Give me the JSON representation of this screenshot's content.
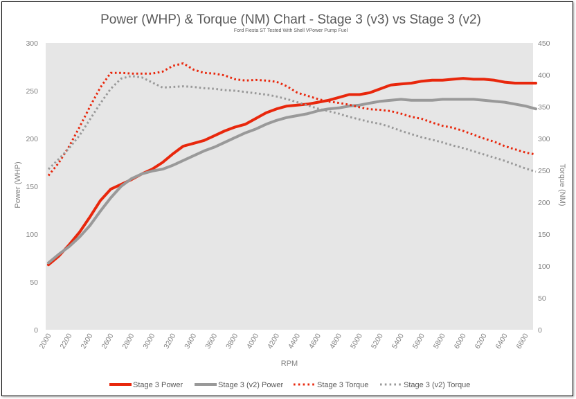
{
  "chart_data": {
    "type": "line",
    "title": "Power (WHP) & Torque (NM) Chart - Stage 3 (v3) vs Stage 3 (v2)",
    "subtitle": "Ford Fiesta ST Tested With Shell VPower Pump Fuel",
    "xlabel": "RPM",
    "ylabel": "Power (WHP)",
    "y2label": "Torque (NM)",
    "ylim": [
      0,
      300
    ],
    "y2lim": [
      0,
      450
    ],
    "yticks": [
      "0",
      "50",
      "100",
      "150",
      "200",
      "250",
      "300"
    ],
    "y2ticks": [
      "0",
      "50",
      "100",
      "150",
      "200",
      "250",
      "300",
      "350",
      "400",
      "450"
    ],
    "xlim": [
      2000,
      6700
    ],
    "xticks": [
      "2000",
      "2200",
      "2400",
      "2600",
      "2800",
      "3000",
      "3200",
      "3400",
      "3600",
      "3800",
      "4000",
      "4200",
      "4400",
      "4600",
      "4800",
      "5000",
      "5200",
      "5400",
      "5600",
      "5800",
      "6000",
      "6200",
      "6400",
      "6600"
    ],
    "plot_background": "#e6e6e6",
    "grid": false,
    "legend_position": "bottom",
    "series": [
      {
        "name": "Stage 3 Power",
        "axis": "left",
        "style": "solid",
        "color": "#e8270c",
        "x": [
          2000,
          2100,
          2200,
          2300,
          2400,
          2500,
          2600,
          2700,
          2800,
          2900,
          3000,
          3100,
          3200,
          3300,
          3400,
          3500,
          3600,
          3700,
          3800,
          3900,
          4000,
          4100,
          4200,
          4300,
          4400,
          4500,
          4600,
          4700,
          4800,
          4900,
          5000,
          5100,
          5200,
          5300,
          5400,
          5500,
          5600,
          5700,
          5800,
          5900,
          6000,
          6100,
          6200,
          6300,
          6400,
          6500,
          6600,
          6700
        ],
        "values": [
          68,
          77,
          89,
          102,
          118,
          135,
          147,
          152,
          157,
          163,
          168,
          175,
          184,
          192,
          195,
          198,
          203,
          208,
          212,
          215,
          221,
          227,
          231,
          234,
          235,
          236,
          238,
          240,
          243,
          246,
          246,
          248,
          252,
          256,
          257,
          258,
          260,
          261,
          261,
          262,
          263,
          262,
          262,
          261,
          259,
          258,
          258,
          258
        ]
      },
      {
        "name": "Stage 3 (v2) Power",
        "axis": "left",
        "style": "solid",
        "color": "#999999",
        "x": [
          2000,
          2100,
          2200,
          2300,
          2400,
          2500,
          2600,
          2700,
          2800,
          2900,
          3000,
          3100,
          3200,
          3300,
          3400,
          3500,
          3600,
          3700,
          3800,
          3900,
          4000,
          4100,
          4200,
          4300,
          4400,
          4500,
          4600,
          4700,
          4800,
          4900,
          5000,
          5100,
          5200,
          5300,
          5400,
          5500,
          5600,
          5700,
          5800,
          5900,
          6000,
          6100,
          6200,
          6300,
          6400,
          6500,
          6600,
          6700
        ],
        "values": [
          70,
          79,
          87,
          97,
          109,
          124,
          138,
          150,
          158,
          163,
          166,
          168,
          172,
          177,
          182,
          187,
          191,
          196,
          201,
          206,
          210,
          215,
          219,
          222,
          224,
          226,
          229,
          231,
          232,
          234,
          235,
          237,
          239,
          240,
          241,
          240,
          240,
          240,
          241,
          241,
          241,
          241,
          240,
          239,
          238,
          236,
          234,
          231
        ]
      },
      {
        "name": "Stage 3 Torque",
        "axis": "right",
        "style": "dotted",
        "color": "#e8270c",
        "x": [
          2000,
          2100,
          2200,
          2300,
          2400,
          2500,
          2600,
          2700,
          2800,
          2900,
          3000,
          3100,
          3200,
          3300,
          3400,
          3500,
          3600,
          3700,
          3800,
          3900,
          4000,
          4100,
          4200,
          4300,
          4400,
          4500,
          4600,
          4700,
          4800,
          4900,
          5000,
          5100,
          5200,
          5300,
          5400,
          5500,
          5600,
          5700,
          5800,
          5900,
          6000,
          6100,
          6200,
          6300,
          6400,
          6500,
          6600,
          6700
        ],
        "values": [
          242,
          262,
          288,
          318,
          350,
          380,
          403,
          403,
          402,
          402,
          402,
          405,
          414,
          418,
          408,
          403,
          402,
          399,
          393,
          391,
          392,
          391,
          389,
          382,
          372,
          367,
          362,
          358,
          356,
          353,
          349,
          346,
          345,
          343,
          339,
          334,
          331,
          325,
          320,
          317,
          312,
          306,
          300,
          295,
          288,
          283,
          278,
          275
        ]
      },
      {
        "name": "Stage 3 (v2) Torque",
        "axis": "right",
        "style": "dotted",
        "color": "#999999",
        "x": [
          2000,
          2100,
          2200,
          2300,
          2400,
          2500,
          2600,
          2700,
          2800,
          2900,
          3000,
          3100,
          3200,
          3300,
          3400,
          3500,
          3600,
          3700,
          3800,
          3900,
          4000,
          4100,
          4200,
          4300,
          4400,
          4500,
          4600,
          4700,
          4800,
          4900,
          5000,
          5100,
          5200,
          5300,
          5400,
          5500,
          5600,
          5700,
          5800,
          5900,
          6000,
          6100,
          6200,
          6300,
          6400,
          6500,
          6600,
          6700
        ],
        "values": [
          252,
          268,
          285,
          305,
          330,
          355,
          378,
          394,
          398,
          396,
          388,
          380,
          381,
          382,
          381,
          379,
          378,
          376,
          375,
          373,
          371,
          369,
          366,
          362,
          357,
          352,
          347,
          343,
          339,
          334,
          330,
          326,
          323,
          318,
          312,
          307,
          302,
          298,
          294,
          289,
          285,
          280,
          275,
          270,
          265,
          259,
          253,
          248
        ]
      }
    ]
  }
}
